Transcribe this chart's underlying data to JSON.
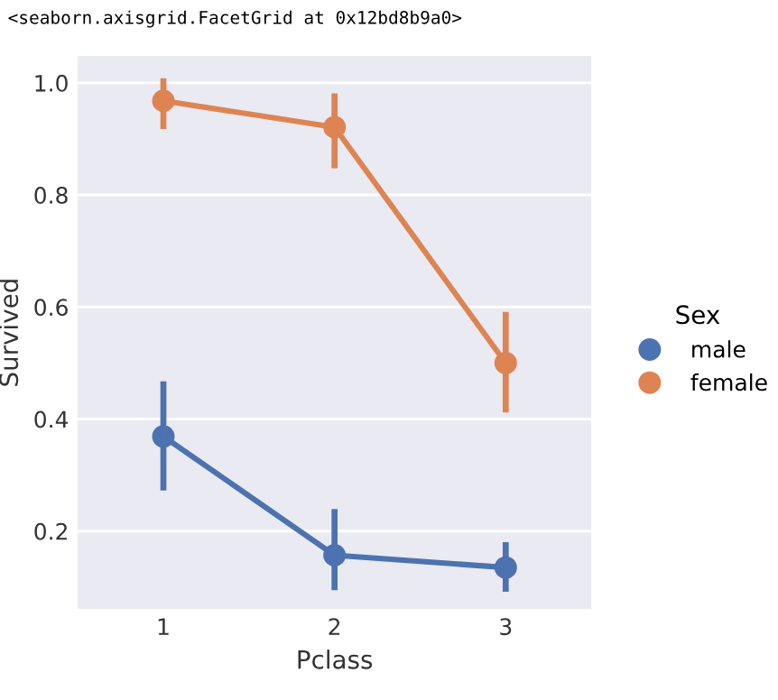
{
  "chart_data": {
    "type": "line",
    "xlabel": "Pclass",
    "ylabel": "Survived",
    "legend_title": "Sex",
    "categories": [
      "1",
      "2",
      "3"
    ],
    "series": [
      {
        "name": "male",
        "color": "#4c72b0",
        "values": [
          0.369,
          0.157,
          0.135
        ],
        "errors": [
          [
            0.278,
            0.462
          ],
          [
            0.1,
            0.234
          ],
          [
            0.097,
            0.175
          ]
        ]
      },
      {
        "name": "female",
        "color": "#dd8452",
        "values": [
          0.968,
          0.921,
          0.5
        ],
        "errors": [
          [
            0.923,
            1.003
          ],
          [
            0.853,
            0.976
          ],
          [
            0.417,
            0.586
          ]
        ]
      }
    ],
    "ylim": [
      0.061,
      1.048
    ],
    "yticks": [
      0.2,
      0.4,
      0.6,
      0.8,
      {
        "value": 1,
        "label": "1.0"
      }
    ],
    "grid": "y",
    "legend": "right",
    "marker": "circle",
    "line_style": "solid",
    "annotations": [
      "<seaborn.axisgrid.FacetGrid at 0x12bd8b9a0>"
    ]
  }
}
